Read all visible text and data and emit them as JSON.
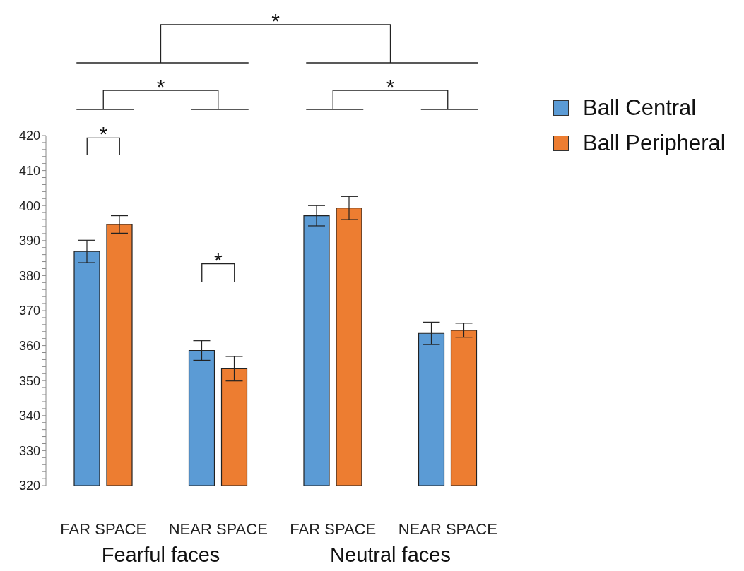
{
  "chart_data": {
    "type": "bar",
    "categories": [
      "FAR SPACE",
      "NEAR SPACE",
      "FAR SPACE",
      "NEAR SPACE"
    ],
    "series": [
      {
        "name": "Ball Central",
        "color": "#5b9bd5",
        "values": [
          386.9,
          358.6,
          397.1,
          363.5
        ],
        "errors": [
          3.2,
          2.8,
          2.9,
          3.2
        ]
      },
      {
        "name": "Ball Peripheral",
        "color": "#ed7d31",
        "values": [
          394.6,
          353.4,
          399.3,
          364.4
        ],
        "errors": [
          2.5,
          3.5,
          3.3,
          2.0
        ]
      }
    ],
    "ylim": [
      320,
      420
    ],
    "yticks": [
      320,
      330,
      340,
      350,
      360,
      370,
      380,
      390,
      400,
      410,
      420
    ],
    "grid": false,
    "legend": "top right",
    "annotations": [
      "*",
      "*",
      "*",
      "*",
      "*",
      "Fearful faces",
      "Neutral faces"
    ]
  }
}
